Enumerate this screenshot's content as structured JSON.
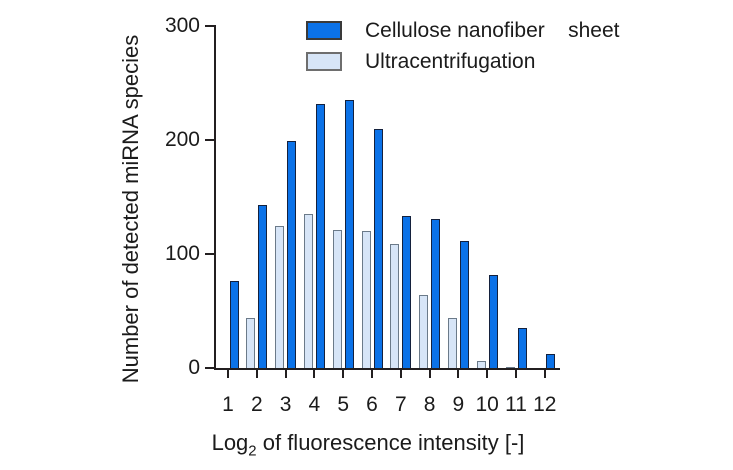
{
  "chart_data": {
    "type": "bar",
    "title": "",
    "ylabel": "Number of detected miRNA species",
    "xlabel_prefix": "Log",
    "xlabel_subscript": "2",
    "xlabel_suffix": " of fluorescence intensity [-]",
    "categories": [
      "1",
      "2",
      "3",
      "4",
      "5",
      "6",
      "7",
      "8",
      "9",
      "10",
      "11",
      "12"
    ],
    "ylim": [
      0,
      300
    ],
    "yticks": [
      "0",
      "100",
      "200",
      "300"
    ],
    "grid": false,
    "legend_position": "top",
    "axis_color": "#231f20",
    "series": [
      {
        "name": "Cellulose nanofiber    sheet",
        "values": [
          76,
          143,
          199,
          232,
          235,
          210,
          133,
          131,
          111,
          82,
          35,
          12
        ],
        "bar_fill": "#0b72e8",
        "bar_border": "#14213d",
        "swatch_border": "#3a3a3a",
        "group_position": "right"
      },
      {
        "name": "Ultracentrifugation",
        "values": [
          0,
          44,
          125,
          135,
          121,
          120,
          109,
          64,
          44,
          6,
          1,
          0
        ],
        "bar_fill": "#d7e5f7",
        "bar_border": "#6b7a89",
        "swatch_border": "#6e6e6e",
        "group_position": "left"
      }
    ]
  }
}
